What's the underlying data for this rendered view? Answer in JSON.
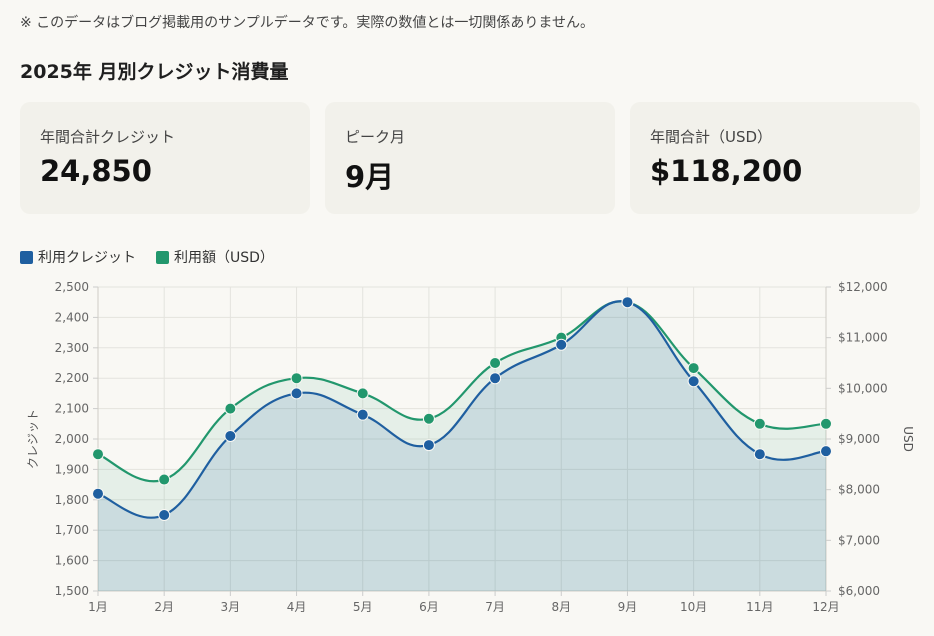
{
  "note": "※ このデータはブログ掲載用のサンプルデータです。実際の数値とは一切関係ありません。",
  "title": "2025年 月別クレジット消費量",
  "cards": [
    {
      "label": "年間合計クレジット",
      "value": "24,850"
    },
    {
      "label": "ピーク月",
      "value": "9月"
    },
    {
      "label": "年間合計（USD）",
      "value": "$118,200"
    }
  ],
  "colors": {
    "credits": "#1f5fa0",
    "usd": "#22976d"
  },
  "chart_data": {
    "type": "line",
    "categories": [
      "1月",
      "2月",
      "3月",
      "4月",
      "5月",
      "6月",
      "7月",
      "8月",
      "9月",
      "10月",
      "11月",
      "12月"
    ],
    "series": [
      {
        "name": "利用クレジット",
        "axis": "left",
        "values": [
          1820,
          1750,
          2010,
          2150,
          2080,
          1980,
          2200,
          2310,
          2450,
          2190,
          1950,
          1960
        ]
      },
      {
        "name": "利用額（USD）",
        "axis": "right",
        "values": [
          8700,
          8200,
          9600,
          10200,
          9900,
          9400,
          10500,
          11000,
          11700,
          10400,
          9300,
          9300
        ]
      }
    ],
    "ylabel": "クレジット",
    "y2label": "USD",
    "ylim": [
      1500,
      2500
    ],
    "y2lim": [
      6000,
      12000
    ],
    "yticks": [
      "1,500",
      "1,600",
      "1,700",
      "1,800",
      "1,900",
      "2,000",
      "2,100",
      "2,200",
      "2,300",
      "2,400",
      "2,500"
    ],
    "y2ticks": [
      "$6,000",
      "$7,000",
      "$8,000",
      "$9,000",
      "$10,000",
      "$11,000",
      "$12,000"
    ],
    "grid": true,
    "legend": "top-left"
  }
}
